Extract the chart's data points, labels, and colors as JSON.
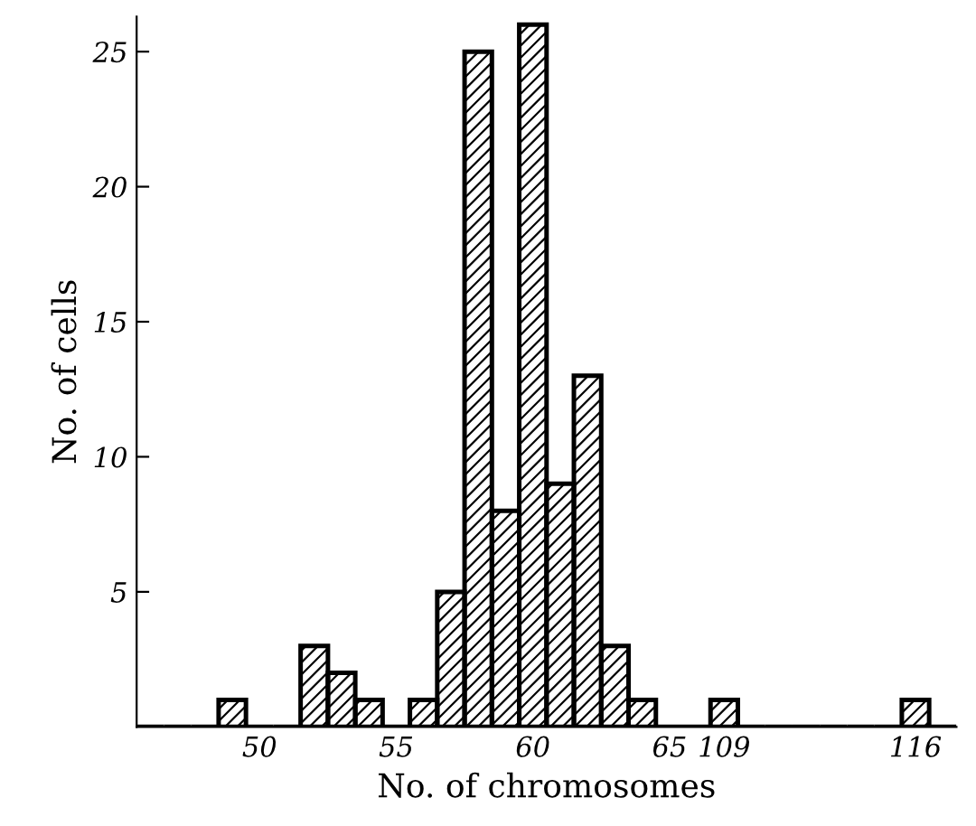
{
  "chart_data": {
    "type": "bar",
    "xlabel": "No. of chromosomes",
    "ylabel": "No. of cells",
    "categories": [
      null,
      null,
      null,
      null,
      "50",
      null,
      null,
      null,
      null,
      "55",
      null,
      null,
      null,
      null,
      "60",
      null,
      null,
      null,
      null,
      "65",
      null,
      "109",
      null,
      null,
      null,
      null,
      null,
      null,
      "116",
      null
    ],
    "values": [
      0,
      0,
      0,
      1,
      0,
      0,
      3,
      2,
      1,
      0,
      1,
      5,
      25,
      8,
      26,
      9,
      13,
      3,
      1,
      0,
      0,
      1,
      0,
      0,
      0,
      0,
      0,
      0,
      1,
      0
    ],
    "color": "#000000",
    "ylim": [
      0,
      26.3
    ],
    "yticks": [
      5,
      10,
      15,
      20,
      25
    ],
    "grid": false
  }
}
